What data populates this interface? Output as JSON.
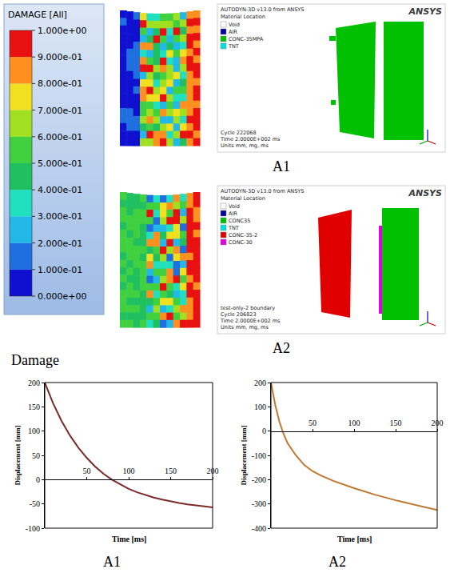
{
  "colorbar": {
    "title": "DAMAGE [All]",
    "range": [
      0,
      1
    ],
    "ticks": [
      {
        "value": 0,
        "label": "0.000e+00"
      },
      {
        "value": 0.1,
        "label": "1.000e-01"
      },
      {
        "value": 0.2,
        "label": "2.000e-01"
      },
      {
        "value": 0.3,
        "label": "3.000e-01"
      },
      {
        "value": 0.4,
        "label": "4.000e-01"
      },
      {
        "value": 0.5,
        "label": "5.000e-01"
      },
      {
        "value": 0.6,
        "label": "6.000e-01"
      },
      {
        "value": 0.7,
        "label": "7.000e-01"
      },
      {
        "value": 0.8,
        "label": "8.000e-01"
      },
      {
        "value": 0.9,
        "label": "9.000e-01"
      },
      {
        "value": 1,
        "label": "1.000e+00"
      }
    ],
    "colors": [
      "#1010d0",
      "#1f6fe0",
      "#22b8e8",
      "#20e0c0",
      "#20c060",
      "#40d040",
      "#a0e020",
      "#f0e020",
      "#ff9020",
      "#e81010"
    ]
  },
  "caption": "Damage",
  "simulations": [
    {
      "label": "A1",
      "header": "AUTODYN-3D v13.0 from ANSYS",
      "brand": "ANSYS",
      "legend_title": "Material Location",
      "materials": [
        {
          "name": "Void",
          "color": "#ffffff"
        },
        {
          "name": "AIR",
          "color": "#0000a0"
        },
        {
          "name": "CONC-35MPA",
          "color": "#00c000"
        },
        {
          "name": "TNT",
          "color": "#00e0e0"
        }
      ],
      "footer": [
        "Cycle 222068",
        "Time 2.0000E+002 ms",
        "Units mm, mg, ms"
      ]
    },
    {
      "label": "A2",
      "header": "AUTODYN-3D v13.0 from ANSYS",
      "brand": "ANSYS",
      "legend_title": "Material Location",
      "materials": [
        {
          "name": "Void",
          "color": "#ffffff"
        },
        {
          "name": "AIR",
          "color": "#0000a0"
        },
        {
          "name": "CONC35",
          "color": "#00c000"
        },
        {
          "name": "TNT",
          "color": "#00e0e0"
        },
        {
          "name": "CONC-35-2",
          "color": "#e00000"
        },
        {
          "name": "CONC-30",
          "color": "#e000e0"
        }
      ],
      "footer": [
        "test-only-2 boundary",
        "Cycle 206823",
        "Time 2.0000E+002 ms",
        "Units mm, mg, ms"
      ]
    }
  ],
  "chart_data": [
    {
      "type": "line",
      "title": "A1",
      "x_label": "Time [ms]",
      "y_label": "Displacement [mm]",
      "x": [
        0,
        10,
        20,
        30,
        40,
        50,
        60,
        70,
        80,
        90,
        100,
        110,
        120,
        130,
        140,
        150,
        160,
        170,
        180,
        190,
        200
      ],
      "series": [
        {
          "color": "#7a2a2a",
          "values": [
            200,
            157,
            121,
            91,
            66,
            45,
            27,
            12,
            0,
            -10,
            -19,
            -26,
            -32,
            -37,
            -41,
            -45,
            -48,
            -51,
            -53,
            -55,
            -57
          ]
        }
      ],
      "xlim": [
        0,
        200
      ],
      "xticks": [
        50,
        100,
        150,
        200
      ],
      "ylim": [
        -100,
        200
      ],
      "yticks": [
        -100,
        -50,
        0,
        50,
        100,
        150,
        200
      ],
      "grid": false
    },
    {
      "type": "line",
      "title": "A2",
      "x_label": "Time [ms]",
      "y_label": "Displacement [mm]",
      "x": [
        0,
        5,
        10,
        15,
        20,
        30,
        40,
        50,
        60,
        75,
        100,
        125,
        150,
        175,
        200
      ],
      "series": [
        {
          "color": "#c07830",
          "values": [
            200,
            110,
            40,
            -10,
            -50,
            -100,
            -140,
            -165,
            -183,
            -205,
            -235,
            -262,
            -285,
            -305,
            -325
          ]
        }
      ],
      "xlim": [
        0,
        200
      ],
      "xticks": [
        50,
        100,
        150,
        200
      ],
      "ylim": [
        -400,
        200
      ],
      "yticks": [
        -400,
        -300,
        -200,
        -100,
        0,
        100,
        200
      ],
      "grid": false
    }
  ]
}
